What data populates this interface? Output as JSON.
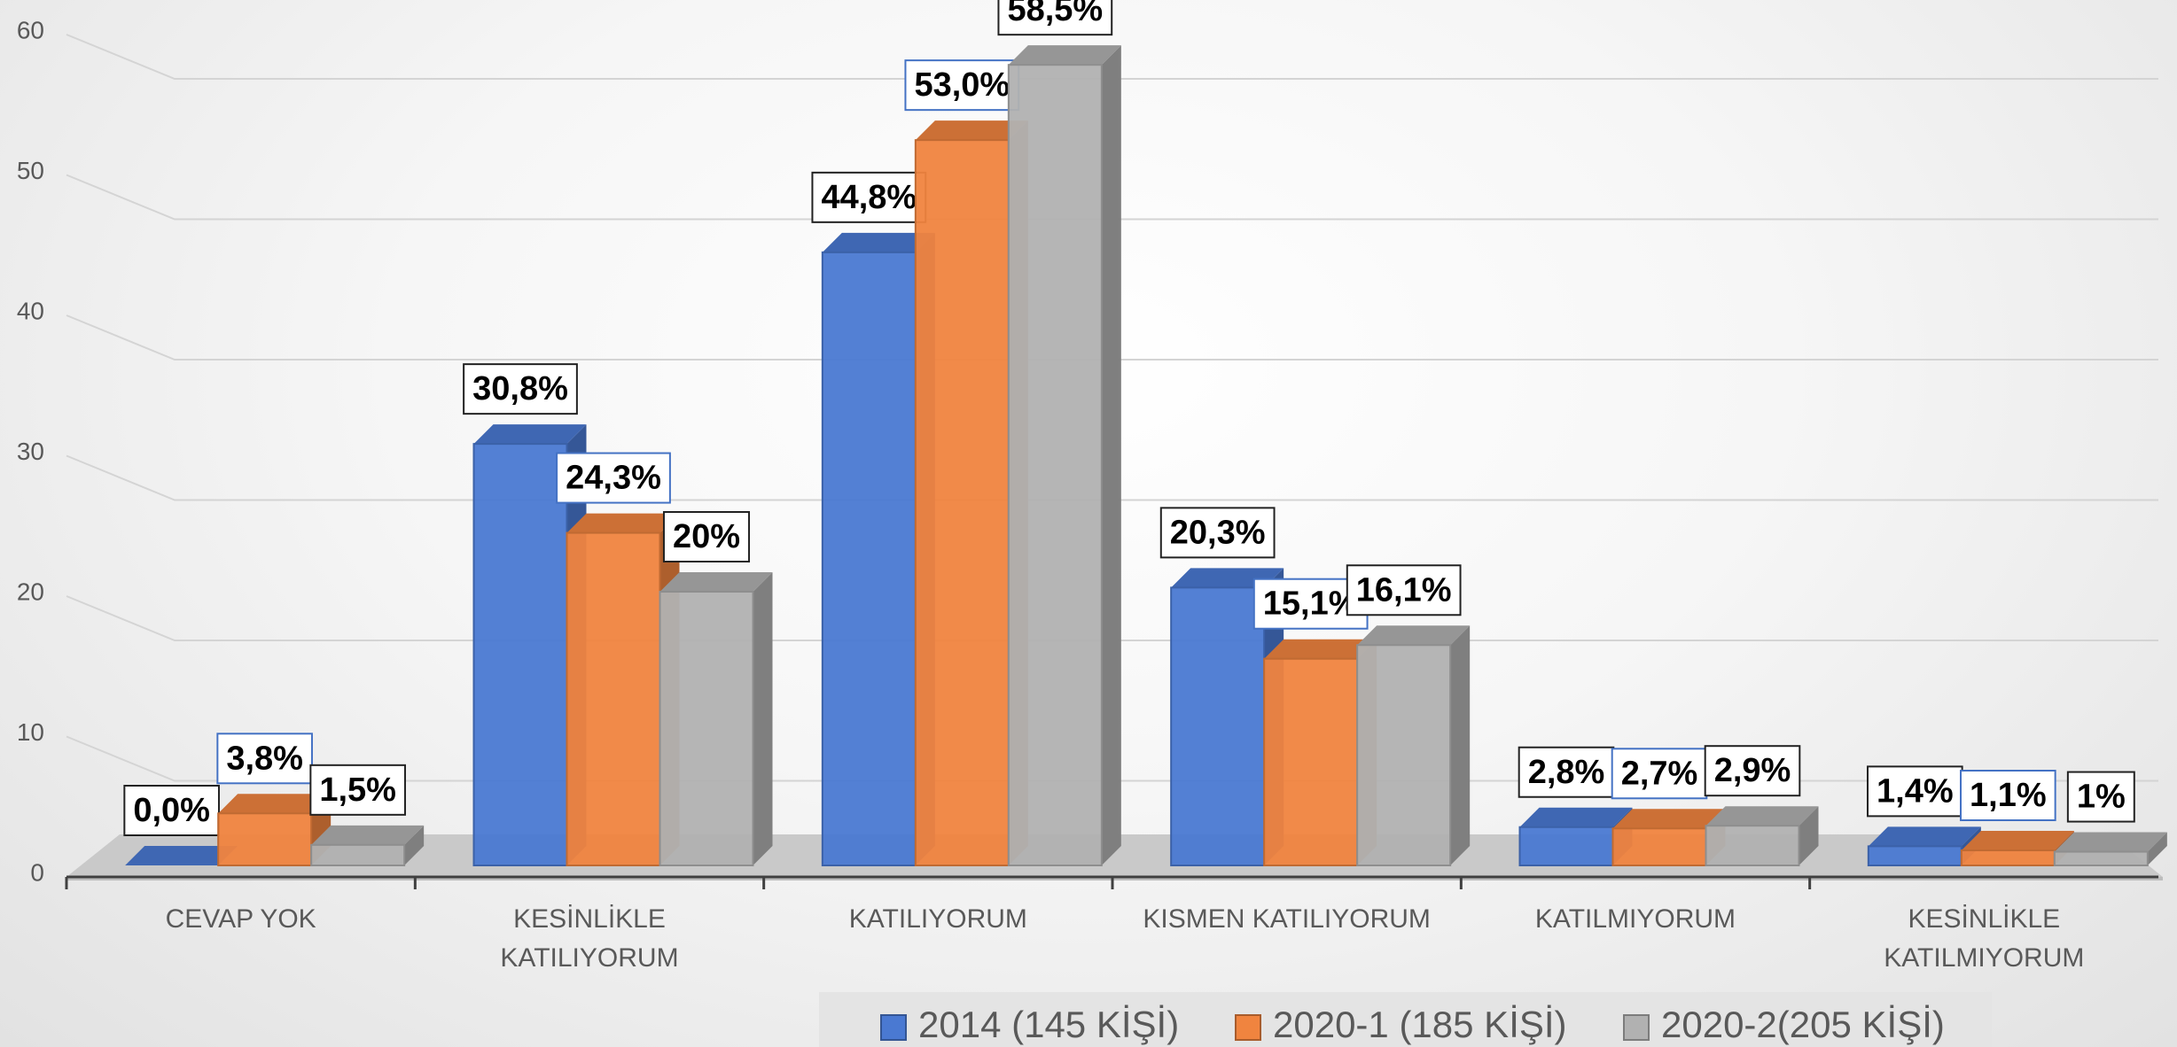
{
  "chart_data": {
    "type": "bar",
    "categories": [
      "CEVAP YOK",
      "KESİNLİKLE KATILIYORUM",
      "KATILIYORUM",
      "KISMEN KATILIYORUM",
      "KATILMIYORUM",
      "KESİNLİKLE KATILMIYORUM"
    ],
    "series": [
      {
        "name": "2014 (145 KİŞİ)",
        "color": "#4a79d2",
        "values": [
          0,
          30.8,
          44.8,
          20.3,
          2.8,
          1.4
        ],
        "value_labels": [
          "0,0%",
          "30,8%",
          "44,8%",
          "20,3%",
          "2,8%",
          "1,4%"
        ]
      },
      {
        "name": "2020-1 (185 KİŞİ)",
        "color": "#f0843f",
        "values": [
          3.8,
          24.3,
          53.0,
          15.1,
          2.7,
          1.1
        ],
        "value_labels": [
          "3,8%",
          "24,3%",
          "53,0%",
          "15,1%",
          "2,7%",
          "1,1%"
        ]
      },
      {
        "name": "2020-2(205 KİŞİ)",
        "color": "#b1b1b1",
        "values": [
          1.5,
          20,
          58.5,
          16.1,
          2.9,
          1
        ],
        "value_labels": [
          "1,5%",
          "20%",
          "58,5%",
          "16,1%",
          "2,9%",
          "1%"
        ]
      }
    ],
    "ylim": [
      0,
      60
    ],
    "yticks": [
      0,
      10,
      20,
      30,
      40,
      50,
      60
    ],
    "grid": true,
    "legend": "bottom"
  }
}
